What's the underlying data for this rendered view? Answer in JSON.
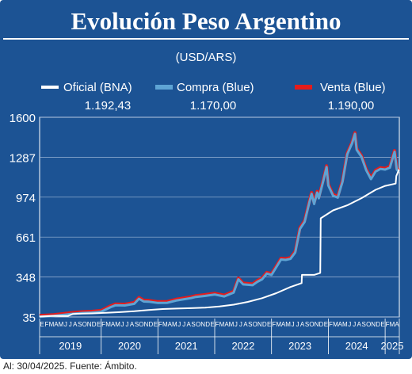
{
  "chart_data": {
    "type": "line",
    "title": "Evolución Peso Argentino",
    "subtitle": "(USD/ARS)",
    "ylim": [
      35,
      1600
    ],
    "yticks": [
      35,
      348,
      661,
      974,
      1287,
      1600
    ],
    "ytick_labels": [
      "35",
      "348",
      "661",
      "974",
      "1287",
      "1600"
    ],
    "x_range": [
      "2019-01",
      "2025-04"
    ],
    "month_tick_labels": {
      "2019": "EFMAMJJASONDE",
      "2020": "FMAMJJASONDE",
      "2021": "FMAMJJASONDE",
      "2022": "FMAMJJASONDE",
      "2023": "FMAMJJASONDE",
      "2024": "FMAMJJASONDE",
      "2025": "FMA"
    },
    "year_labels": [
      "2019",
      "2020",
      "2021",
      "2022",
      "2023",
      "2024",
      "2025"
    ],
    "grid": true,
    "legend_position": "top",
    "series": [
      {
        "name": "Oficial (BNA)",
        "last_value_label": "1.192,43",
        "color": "#ffffff",
        "points": [
          [
            "2019-01",
            38
          ],
          [
            "2019-04",
            44
          ],
          [
            "2019-07",
            43
          ],
          [
            "2019-08",
            58
          ],
          [
            "2019-10",
            61
          ],
          [
            "2019-12",
            63
          ],
          [
            "2020-03",
            68
          ],
          [
            "2020-06",
            73
          ],
          [
            "2020-09",
            80
          ],
          [
            "2020-12",
            89
          ],
          [
            "2021-03",
            97
          ],
          [
            "2021-06",
            101
          ],
          [
            "2021-09",
            104
          ],
          [
            "2021-12",
            108
          ],
          [
            "2022-03",
            117
          ],
          [
            "2022-06",
            131
          ],
          [
            "2022-09",
            153
          ],
          [
            "2022-12",
            182
          ],
          [
            "2023-03",
            221
          ],
          [
            "2023-06",
            270
          ],
          [
            "2023-08-12",
            300
          ],
          [
            "2023-08-14",
            365
          ],
          [
            "2023-11",
            365
          ],
          [
            "2023-12-10",
            380
          ],
          [
            "2023-12-13",
            808
          ],
          [
            "2024-03",
            870
          ],
          [
            "2024-06",
            910
          ],
          [
            "2024-09",
            966
          ],
          [
            "2024-12",
            1032
          ],
          [
            "2025-02",
            1062
          ],
          [
            "2025-04-08",
            1080
          ],
          [
            "2025-04-12",
            1140
          ],
          [
            "2025-04-30",
            1192
          ]
        ]
      },
      {
        "name": "Compra (Blue)",
        "last_value_label": "1.170,00",
        "color": "#5ea4d4",
        "points": [
          [
            "2019-01",
            37
          ],
          [
            "2019-04",
            43
          ],
          [
            "2019-08",
            60
          ],
          [
            "2019-10",
            66
          ],
          [
            "2019-12",
            69
          ],
          [
            "2020-02",
            76
          ],
          [
            "2020-04",
            112
          ],
          [
            "2020-05",
            126
          ],
          [
            "2020-07",
            125
          ],
          [
            "2020-09",
            138
          ],
          [
            "2020-10",
            178
          ],
          [
            "2020-11",
            156
          ],
          [
            "2020-12",
            155
          ],
          [
            "2021-02",
            145
          ],
          [
            "2021-04",
            146
          ],
          [
            "2021-06",
            165
          ],
          [
            "2021-09",
            183
          ],
          [
            "2021-10",
            192
          ],
          [
            "2021-12",
            200
          ],
          [
            "2022-02",
            211
          ],
          [
            "2022-04",
            196
          ],
          [
            "2022-06",
            226
          ],
          [
            "2022-07",
            330
          ],
          [
            "2022-08",
            290
          ],
          [
            "2022-10",
            284
          ],
          [
            "2022-11",
            310
          ],
          [
            "2022-12",
            330
          ],
          [
            "2023-01",
            375
          ],
          [
            "2023-02",
            365
          ],
          [
            "2023-04",
            485
          ],
          [
            "2023-05",
            482
          ],
          [
            "2023-06",
            490
          ],
          [
            "2023-07",
            540
          ],
          [
            "2023-08",
            725
          ],
          [
            "2023-09",
            780
          ],
          [
            "2023-10",
            935
          ],
          [
            "2023-10-15",
            1000
          ],
          [
            "2023-11",
            920
          ],
          [
            "2023-11-20",
            1010
          ],
          [
            "2023-12",
            965
          ],
          [
            "2024-01",
            1110
          ],
          [
            "2024-01-20",
            1210
          ],
          [
            "2024-02",
            1065
          ],
          [
            "2024-03",
            985
          ],
          [
            "2024-04",
            970
          ],
          [
            "2024-05",
            1095
          ],
          [
            "2024-06",
            1310
          ],
          [
            "2024-07",
            1395
          ],
          [
            "2024-07-20",
            1470
          ],
          [
            "2024-08",
            1345
          ],
          [
            "2024-09",
            1290
          ],
          [
            "2024-10",
            1185
          ],
          [
            "2024-11",
            1115
          ],
          [
            "2024-12",
            1175
          ],
          [
            "2025-01",
            1195
          ],
          [
            "2025-02",
            1190
          ],
          [
            "2025-03",
            1205
          ],
          [
            "2025-04",
            1330
          ],
          [
            "2025-04-15",
            1190
          ],
          [
            "2025-04-30",
            1170
          ]
        ]
      },
      {
        "name": "Venta (Blue)",
        "last_value_label": "1.190,00",
        "color": "#e41c1c"
      }
    ]
  },
  "footer": "Al: 30/04/2025. Fuente: Ámbito."
}
